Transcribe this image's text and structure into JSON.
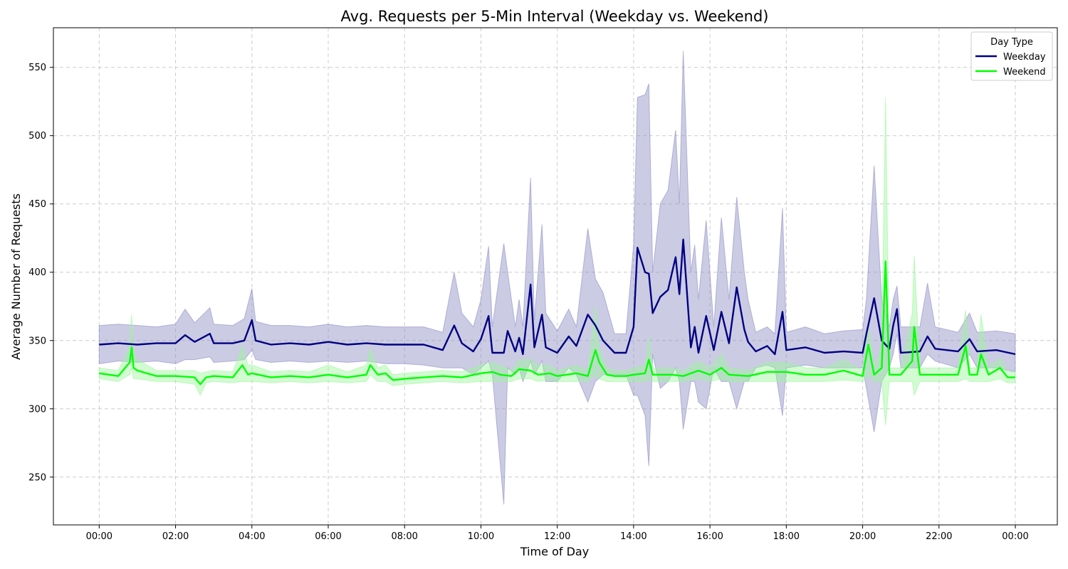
{
  "chart_data": {
    "type": "line",
    "title": "Avg. Requests per 5-Min Interval (Weekday vs. Weekend)",
    "xlabel": "Time of Day",
    "ylabel": "Average Number of Requests",
    "x_ticks": [
      "00:00",
      "02:00",
      "04:00",
      "06:00",
      "08:00",
      "10:00",
      "12:00",
      "14:00",
      "16:00",
      "18:00",
      "20:00",
      "22:00",
      "00:00"
    ],
    "y_ticks": [
      250,
      300,
      350,
      400,
      450,
      500,
      550
    ],
    "xlim_hours": [
      -1.2,
      25.1
    ],
    "ylim": [
      215,
      579
    ],
    "grid": true,
    "legend": {
      "title": "Day Type",
      "placement": "top-right"
    },
    "series": [
      {
        "name": "Weekday",
        "color": "#000080",
        "band_color": "#8c8cc4",
        "points": [
          [
            0.0,
            347,
            333,
            361
          ],
          [
            0.5,
            348,
            335,
            362
          ],
          [
            1.0,
            347,
            334,
            361
          ],
          [
            1.5,
            348,
            335,
            360
          ],
          [
            2.0,
            348,
            333,
            362
          ],
          [
            2.25,
            354,
            336,
            373
          ],
          [
            2.5,
            349,
            336,
            363
          ],
          [
            2.9,
            355,
            338,
            374
          ],
          [
            3.0,
            348,
            334,
            362
          ],
          [
            3.5,
            348,
            335,
            361
          ],
          [
            3.8,
            350,
            336,
            366
          ],
          [
            4.0,
            365,
            343,
            388
          ],
          [
            4.1,
            350,
            336,
            364
          ],
          [
            4.5,
            347,
            334,
            361
          ],
          [
            5.0,
            348,
            335,
            361
          ],
          [
            5.5,
            347,
            334,
            360
          ],
          [
            6.0,
            349,
            335,
            362
          ],
          [
            6.5,
            347,
            334,
            360
          ],
          [
            7.0,
            348,
            335,
            361
          ],
          [
            7.5,
            347,
            333,
            360
          ],
          [
            8.0,
            347,
            333,
            360
          ],
          [
            8.5,
            347,
            332,
            360
          ],
          [
            9.0,
            343,
            330,
            356
          ],
          [
            9.3,
            361,
            330,
            400
          ],
          [
            9.5,
            348,
            330,
            370
          ],
          [
            9.8,
            342,
            325,
            360
          ],
          [
            10.0,
            351,
            330,
            380
          ],
          [
            10.2,
            368,
            335,
            419
          ],
          [
            10.3,
            341,
            325,
            360
          ],
          [
            10.6,
            341,
            230,
            421
          ],
          [
            10.7,
            357,
            330,
            400
          ],
          [
            10.9,
            342,
            325,
            360
          ],
          [
            11.0,
            352,
            330,
            380
          ],
          [
            11.1,
            340,
            320,
            360
          ],
          [
            11.3,
            391,
            335,
            469
          ],
          [
            11.4,
            345,
            325,
            365
          ],
          [
            11.6,
            369,
            335,
            435
          ],
          [
            11.7,
            345,
            320,
            370
          ],
          [
            12.0,
            341,
            320,
            357
          ],
          [
            12.3,
            353,
            330,
            373
          ],
          [
            12.5,
            346,
            325,
            360
          ],
          [
            12.8,
            369,
            305,
            432
          ],
          [
            13.0,
            361,
            320,
            395
          ],
          [
            13.2,
            350,
            325,
            385
          ],
          [
            13.5,
            341,
            325,
            355
          ],
          [
            13.8,
            341,
            325,
            355
          ],
          [
            14.0,
            360,
            310,
            420
          ],
          [
            14.1,
            418,
            310,
            528
          ],
          [
            14.3,
            400,
            295,
            530
          ],
          [
            14.4,
            399,
            258,
            538
          ],
          [
            14.5,
            370,
            340,
            400
          ],
          [
            14.7,
            382,
            315,
            450
          ],
          [
            14.9,
            387,
            320,
            460
          ],
          [
            15.1,
            411,
            330,
            504
          ],
          [
            15.2,
            384,
            320,
            450
          ],
          [
            15.3,
            424,
            285,
            562
          ],
          [
            15.5,
            345,
            320,
            400
          ],
          [
            15.6,
            360,
            320,
            420
          ],
          [
            15.7,
            341,
            305,
            380
          ],
          [
            15.9,
            368,
            300,
            438
          ],
          [
            16.1,
            343,
            330,
            360
          ],
          [
            16.3,
            371,
            320,
            440
          ],
          [
            16.5,
            348,
            320,
            380
          ],
          [
            16.7,
            389,
            300,
            455
          ],
          [
            16.9,
            358,
            320,
            400
          ],
          [
            17.0,
            349,
            320,
            380
          ],
          [
            17.2,
            342,
            330,
            356
          ],
          [
            17.5,
            346,
            332,
            360
          ],
          [
            17.7,
            340,
            330,
            355
          ],
          [
            17.9,
            371,
            295,
            447
          ],
          [
            18.0,
            343,
            330,
            356
          ],
          [
            18.5,
            345,
            332,
            360
          ],
          [
            19.0,
            341,
            330,
            355
          ],
          [
            19.5,
            342,
            330,
            357
          ],
          [
            20.0,
            341,
            330,
            358
          ],
          [
            20.1,
            355,
            315,
            380
          ],
          [
            20.3,
            381,
            283,
            478
          ],
          [
            20.5,
            350,
            320,
            380
          ],
          [
            20.7,
            344,
            330,
            360
          ],
          [
            20.8,
            361,
            340,
            380
          ],
          [
            20.9,
            373,
            355,
            390
          ],
          [
            21.0,
            341,
            330,
            360
          ],
          [
            21.5,
            342,
            330,
            360
          ],
          [
            21.7,
            353,
            340,
            392
          ],
          [
            21.9,
            344,
            335,
            360
          ],
          [
            22.5,
            342,
            330,
            356
          ],
          [
            22.8,
            351,
            340,
            370
          ],
          [
            23.0,
            342,
            330,
            356
          ],
          [
            23.5,
            343,
            330,
            357
          ],
          [
            24.0,
            340,
            327,
            355
          ]
        ]
      },
      {
        "name": "Weekend",
        "color": "#00ff00",
        "band_color": "#9cf79c",
        "points": [
          [
            0.0,
            326,
            322,
            330
          ],
          [
            0.5,
            324,
            320,
            328
          ],
          [
            0.8,
            334,
            325,
            346
          ],
          [
            0.85,
            345,
            330,
            369
          ],
          [
            0.9,
            330,
            322,
            340
          ],
          [
            1.0,
            328,
            322,
            336
          ],
          [
            1.5,
            324,
            320,
            328
          ],
          [
            2.0,
            324,
            320,
            328
          ],
          [
            2.5,
            323,
            318,
            328
          ],
          [
            2.65,
            318,
            310,
            326
          ],
          [
            2.8,
            323,
            319,
            327
          ],
          [
            3.0,
            324,
            320,
            328
          ],
          [
            3.5,
            323,
            319,
            327
          ],
          [
            3.75,
            332,
            320,
            346
          ],
          [
            3.9,
            325,
            320,
            332
          ],
          [
            4.0,
            326,
            320,
            332
          ],
          [
            4.5,
            323,
            319,
            327
          ],
          [
            5.0,
            324,
            320,
            328
          ],
          [
            5.5,
            323,
            319,
            327
          ],
          [
            6.0,
            325,
            320,
            332
          ],
          [
            6.5,
            323,
            319,
            327
          ],
          [
            7.0,
            325,
            320,
            332
          ],
          [
            7.1,
            332,
            325,
            344
          ],
          [
            7.3,
            325,
            320,
            330
          ],
          [
            7.5,
            326,
            320,
            332
          ],
          [
            7.7,
            321,
            317,
            325
          ],
          [
            8.0,
            322,
            318,
            326
          ],
          [
            8.5,
            323,
            319,
            327
          ],
          [
            9.0,
            324,
            320,
            328
          ],
          [
            9.5,
            323,
            319,
            327
          ],
          [
            10.0,
            326,
            320,
            332
          ],
          [
            10.3,
            327,
            320,
            334
          ],
          [
            10.5,
            325,
            320,
            332
          ],
          [
            10.8,
            324,
            320,
            328
          ],
          [
            11.0,
            329,
            322,
            336
          ],
          [
            11.3,
            328,
            322,
            336
          ],
          [
            11.5,
            325,
            320,
            332
          ],
          [
            11.8,
            326,
            321,
            332
          ],
          [
            12.0,
            324,
            320,
            328
          ],
          [
            12.5,
            326,
            320,
            332
          ],
          [
            12.8,
            324,
            320,
            328
          ],
          [
            13.0,
            343,
            325,
            375
          ],
          [
            13.1,
            334,
            322,
            345
          ],
          [
            13.3,
            325,
            320,
            330
          ],
          [
            13.5,
            324,
            320,
            328
          ],
          [
            13.8,
            324,
            320,
            328
          ],
          [
            14.0,
            325,
            320,
            330
          ],
          [
            14.3,
            326,
            320,
            332
          ],
          [
            14.4,
            336,
            322,
            353
          ],
          [
            14.5,
            325,
            320,
            330
          ],
          [
            14.8,
            325,
            320,
            330
          ],
          [
            15.0,
            325,
            320,
            330
          ],
          [
            15.3,
            324,
            320,
            328
          ],
          [
            15.7,
            328,
            322,
            335
          ],
          [
            16.0,
            325,
            320,
            330
          ],
          [
            16.3,
            330,
            322,
            340
          ],
          [
            16.5,
            325,
            320,
            330
          ],
          [
            17.0,
            324,
            320,
            328
          ],
          [
            17.5,
            327,
            320,
            334
          ],
          [
            18.0,
            327,
            320,
            334
          ],
          [
            18.5,
            325,
            320,
            330
          ],
          [
            19.0,
            325,
            320,
            330
          ],
          [
            19.5,
            328,
            321,
            336
          ],
          [
            20.0,
            324,
            320,
            328
          ],
          [
            20.15,
            347,
            325,
            360
          ],
          [
            20.3,
            325,
            320,
            330
          ],
          [
            20.5,
            330,
            320,
            345
          ],
          [
            20.6,
            408,
            288,
            528
          ],
          [
            20.7,
            325,
            320,
            330
          ],
          [
            21.0,
            325,
            320,
            330
          ],
          [
            21.3,
            335,
            320,
            370
          ],
          [
            21.35,
            360,
            310,
            412
          ],
          [
            21.5,
            325,
            320,
            330
          ],
          [
            22.0,
            325,
            320,
            330
          ],
          [
            22.5,
            325,
            320,
            330
          ],
          [
            22.7,
            346,
            322,
            372
          ],
          [
            22.8,
            325,
            320,
            330
          ],
          [
            23.0,
            325,
            320,
            330
          ],
          [
            23.1,
            340,
            320,
            369
          ],
          [
            23.3,
            325,
            320,
            330
          ],
          [
            23.6,
            330,
            322,
            337
          ],
          [
            23.8,
            323,
            319,
            327
          ],
          [
            24.0,
            323,
            319,
            327
          ]
        ]
      }
    ]
  }
}
